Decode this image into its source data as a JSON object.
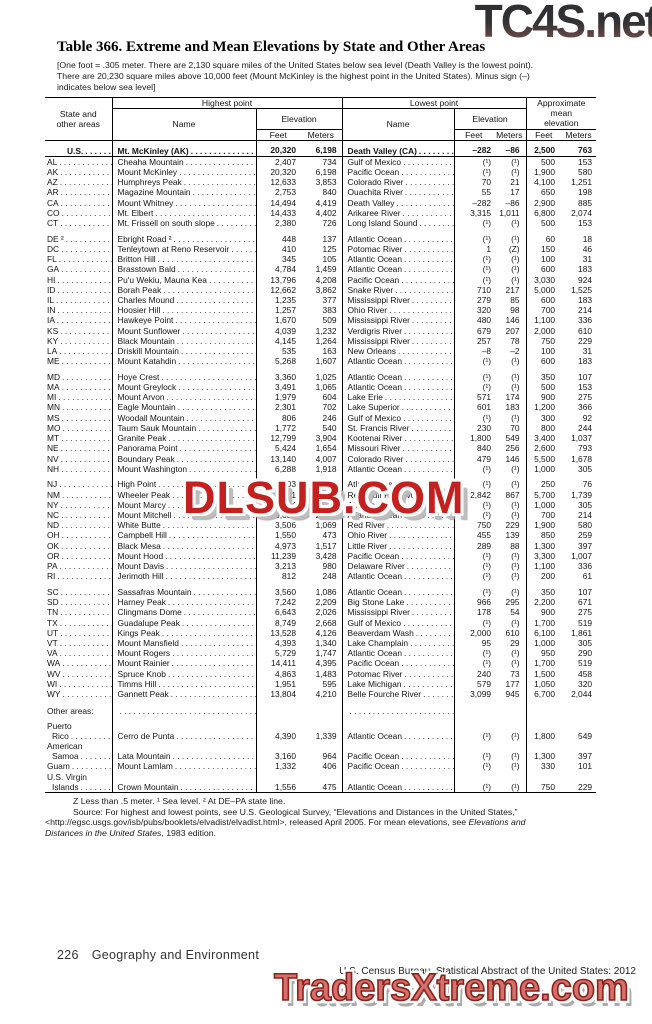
{
  "watermarks": {
    "top": "TC4S.net",
    "middle": "DLSUB.COM",
    "bottom": "TradersXtreme.com"
  },
  "title": "Table 366. Extreme and Mean Elevations by State and Other Areas",
  "headnote": {
    "line1": "[One foot = .305 meter. There are 2,130 square miles of the United States below sea level (Death Valley is the lowest point).",
    "line2": "There are 20,230 square miles above 10,000 feet (Mount McKinley is the highest point in the United States). Minus sign (–)",
    "line3": "indicates below sea level]"
  },
  "table": {
    "header": {
      "state": "State and\nother areas",
      "highest": "Highest point",
      "lowest": "Lowest point",
      "mean": "Approximate\nmean\nelevation",
      "name": "Name",
      "elevation": "Elevation",
      "feet": "Feet",
      "meters": "Meters"
    },
    "us_row": [
      "U.S.",
      "Mt. McKinley (AK)",
      "20,320",
      "6,198",
      "Death Valley (CA)",
      "–282",
      "–86",
      "2,500",
      "763"
    ],
    "sections": [
      [
        [
          "AL",
          "Cheaha Mountain",
          "2,407",
          "734",
          "Gulf of Mexico",
          "(¹)",
          "(¹)",
          "500",
          "153"
        ],
        [
          "AK",
          "Mount McKinley",
          "20,320",
          "6,198",
          "Pacific Ocean",
          "(¹)",
          "(¹)",
          "1,900",
          "580"
        ],
        [
          "AZ",
          "Humphreys Peak",
          "12,633",
          "3,853",
          "Colorado River",
          "70",
          "21",
          "4,100",
          "1,251"
        ],
        [
          "AR",
          "Magazine Mountain",
          "2,753",
          "840",
          "Ouachita River",
          "55",
          "17",
          "650",
          "198"
        ],
        [
          "CA",
          "Mount Whitney",
          "14,494",
          "4,419",
          "Death Valley",
          "–282",
          "–86",
          "2,900",
          "885"
        ],
        [
          "CO",
          "Mt. Elbert",
          "14,433",
          "4,402",
          "Arikaree River",
          "3,315",
          "1,011",
          "6,800",
          "2,074"
        ],
        [
          "CT",
          "Mt. Frissell on south slope",
          "2,380",
          "726",
          "Long Island Sound",
          "(¹)",
          "(¹)",
          "500",
          "153"
        ]
      ],
      [
        [
          "DE ²",
          "Ebright Road ²",
          "448",
          "137",
          "Atlantic Ocean",
          "(¹)",
          "(¹)",
          "60",
          "18"
        ],
        [
          "DC",
          "Tenleytown at Reno Reservoir",
          "410",
          "125",
          "Potomac River",
          "1",
          "(Z)",
          "150",
          "46"
        ],
        [
          "FL",
          "Britton Hill",
          "345",
          "105",
          "Atlantic Ocean",
          "(¹)",
          "(¹)",
          "100",
          "31"
        ],
        [
          "GA",
          "Brasstown Bald",
          "4,784",
          "1,459",
          "Atlantic Ocean",
          "(¹)",
          "(¹)",
          "600",
          "183"
        ],
        [
          "HI",
          "Pu'u Wekiu, Mauna Kea",
          "13,796",
          "4,208",
          "Pacific Ocean",
          "(¹)",
          "(¹)",
          "3,030",
          "924"
        ],
        [
          "ID",
          "Borah Peak",
          "12,662",
          "3,862",
          "Snake River",
          "710",
          "217",
          "5,000",
          "1,525"
        ],
        [
          "IL",
          "Charles Mound",
          "1,235",
          "377",
          "Mississippi River",
          "279",
          "85",
          "600",
          "183"
        ],
        [
          "IN",
          "Hoosier Hill",
          "1,257",
          "383",
          "Ohio River",
          "320",
          "98",
          "700",
          "214"
        ],
        [
          "IA",
          "Hawkeye Point",
          "1,670",
          "509",
          "Mississippi River",
          "480",
          "146",
          "1,100",
          "336"
        ],
        [
          "KS",
          "Mount Sunflower",
          "4,039",
          "1,232",
          "Verdigris River",
          "679",
          "207",
          "2,000",
          "610"
        ],
        [
          "KY",
          "Black Mountain",
          "4,145",
          "1,264",
          "Mississippi River",
          "257",
          "78",
          "750",
          "229"
        ],
        [
          "LA",
          "Driskill Mountain",
          "535",
          "163",
          "New Orleans",
          "–8",
          "–2",
          "100",
          "31"
        ],
        [
          "ME",
          "Mount Katahdin",
          "5,268",
          "1,607",
          "Atlantic Ocean",
          "(¹)",
          "(¹)",
          "600",
          "183"
        ]
      ],
      [
        [
          "MD",
          "Hoye Crest",
          "3,360",
          "1,025",
          "Atlantic Ocean",
          "(¹)",
          "(¹)",
          "350",
          "107"
        ],
        [
          "MA",
          "Mount Greylock",
          "3,491",
          "1,065",
          "Atlantic Ocean",
          "(¹)",
          "(¹)",
          "500",
          "153"
        ],
        [
          "MI",
          "Mount Arvon",
          "1,979",
          "604",
          "Lake Erie",
          "571",
          "174",
          "900",
          "275"
        ],
        [
          "MN",
          "Eagle Mountain",
          "2,301",
          "702",
          "Lake Superior",
          "601",
          "183",
          "1,200",
          "366"
        ],
        [
          "MS",
          "Woodall Mountain",
          "806",
          "246",
          "Gulf of Mexico",
          "(¹)",
          "(¹)",
          "300",
          "92"
        ],
        [
          "MO",
          "Taum Sauk Mountain",
          "1,772",
          "540",
          "St. Francis River",
          "230",
          "70",
          "800",
          "244"
        ],
        [
          "MT",
          "Granite Peak",
          "12,799",
          "3,904",
          "Kootenai River",
          "1,800",
          "549",
          "3,400",
          "1,037"
        ],
        [
          "NE",
          "Panorama Point",
          "5,424",
          "1,654",
          "Missouri River",
          "840",
          "256",
          "2,600",
          "793"
        ],
        [
          "NV",
          "Boundary Peak",
          "13,140",
          "4,007",
          "Colorado River",
          "479",
          "146",
          "5,500",
          "1,678"
        ],
        [
          "NH",
          "Mount Washington",
          "6,288",
          "1,918",
          "Atlantic Ocean",
          "(¹)",
          "(¹)",
          "1,000",
          "305"
        ]
      ],
      [
        [
          "NJ",
          "High Point",
          "1,803",
          "550",
          "Atlantic Ocean",
          "(¹)",
          "(¹)",
          "250",
          "76"
        ],
        [
          "NM",
          "Wheeler Peak",
          "13,161",
          "4,014",
          "Red Bluff Reservoir",
          "2,842",
          "867",
          "5,700",
          "1,739"
        ],
        [
          "NY",
          "Mount Marcy",
          "5,344",
          "1,629",
          "Atlantic Ocean",
          "(¹)",
          "(¹)",
          "1,000",
          "305"
        ],
        [
          "NC",
          "Mount Mitchell",
          "6,684",
          "2,037",
          "Atlantic Ocean",
          "(¹)",
          "(¹)",
          "700",
          "214"
        ],
        [
          "ND",
          "White Butte",
          "3,506",
          "1,069",
          "Red River",
          "750",
          "229",
          "1,900",
          "580"
        ],
        [
          "OH",
          "Campbell Hill",
          "1,550",
          "473",
          "Ohio River",
          "455",
          "139",
          "850",
          "259"
        ],
        [
          "OK",
          "Black Mesa",
          "4,973",
          "1,517",
          "Little River",
          "289",
          "88",
          "1,300",
          "397"
        ],
        [
          "OR",
          "Mount Hood",
          "11,239",
          "3,428",
          "Pacific Ocean",
          "(¹)",
          "(¹)",
          "3,300",
          "1,007"
        ],
        [
          "PA",
          "Mount Davis",
          "3,213",
          "980",
          "Delaware River",
          "(¹)",
          "(¹)",
          "1,100",
          "336"
        ],
        [
          "RI",
          "Jerimoth Hill",
          "812",
          "248",
          "Atlantic Ocean",
          "(¹)",
          "(¹)",
          "200",
          "61"
        ]
      ],
      [
        [
          "SC",
          "Sassafras Mountain",
          "3,560",
          "1,086",
          "Atlantic Ocean",
          "(¹)",
          "(¹)",
          "350",
          "107"
        ],
        [
          "SD",
          "Harney Peak",
          "7,242",
          "2,209",
          "Big Stone Lake",
          "966",
          "295",
          "2,200",
          "671"
        ],
        [
          "TN",
          "Clingmans Dome",
          "6,643",
          "2,026",
          "Mississippi River",
          "178",
          "54",
          "900",
          "275"
        ],
        [
          "TX",
          "Guadalupe Peak",
          "8,749",
          "2,668",
          "Gulf of Mexico",
          "(¹)",
          "(¹)",
          "1,700",
          "519"
        ],
        [
          "UT",
          "Kings Peak",
          "13,528",
          "4,126",
          "Beaverdam Wash",
          "2,000",
          "610",
          "6,100",
          "1,861"
        ],
        [
          "VT",
          "Mount Mansfield",
          "4,393",
          "1,340",
          "Lake Champlain",
          "95",
          "29",
          "1,000",
          "305"
        ],
        [
          "VA",
          "Mount Rogers",
          "5,729",
          "1,747",
          "Atlantic Ocean",
          "(¹)",
          "(¹)",
          "950",
          "290"
        ],
        [
          "WA",
          "Mount Rainier",
          "14,411",
          "4,395",
          "Pacific Ocean",
          "(¹)",
          "(¹)",
          "1,700",
          "519"
        ],
        [
          "WV",
          "Spruce Knob",
          "4,863",
          "1,483",
          "Potomac River",
          "240",
          "73",
          "1,500",
          "458"
        ],
        [
          "WI",
          "Timms Hill",
          "1,951",
          "595",
          "Lake Michigan",
          "579",
          "177",
          "1,050",
          "320"
        ],
        [
          "WY",
          "Gannett Peak",
          "13,804",
          "4,210",
          "Belle Fourche River",
          "3,099",
          "945",
          "6,700",
          "2,044"
        ]
      ]
    ],
    "other_areas_label": "Other areas:",
    "other_areas": [
      [
        "Puerto\nRico",
        "Cerro de Punta",
        "4,390",
        "1,339",
        "Atlantic Ocean",
        "(¹)",
        "(¹)",
        "1,800",
        "549"
      ],
      [
        "American\nSamoa",
        "Lata Mountain",
        "3,160",
        "964",
        "Pacific Ocean",
        "(¹)",
        "(¹)",
        "1,300",
        "397"
      ],
      [
        "Guam",
        "Mount Lamlam",
        "1,332",
        "406",
        "Pacific Ocean",
        "(¹)",
        "(¹)",
        "330",
        "101"
      ],
      [
        "U.S. Virgin\nIslands",
        "Crown Mountain",
        "1,556",
        "475",
        "Atlantic Ocean",
        "(¹)",
        "(¹)",
        "750",
        "229"
      ]
    ]
  },
  "footnotes": {
    "line1": "Z Less than .5 meter. ¹ Sea level. ² At DE–PA state line.",
    "source_line1": "Source: For highest and lowest points, see U.S. Geological Survey, “Elevations and Distances in the United States,”",
    "source_line2": "<http://egsc.usgs.gov/isb/pubs/booklets/elvadist/elvadist.html>, released April 2005. For mean elevations, see ",
    "source_line2_italic": "Elevations and",
    "source_line3_italic": "Distances in the United States",
    "source_line3_end": ", 1983 edition."
  },
  "footer": {
    "page": "226",
    "chapter": "Geography and Environment",
    "credit": "U.S. Census Bureau, Statistical Abstract of the United States: 2012"
  }
}
